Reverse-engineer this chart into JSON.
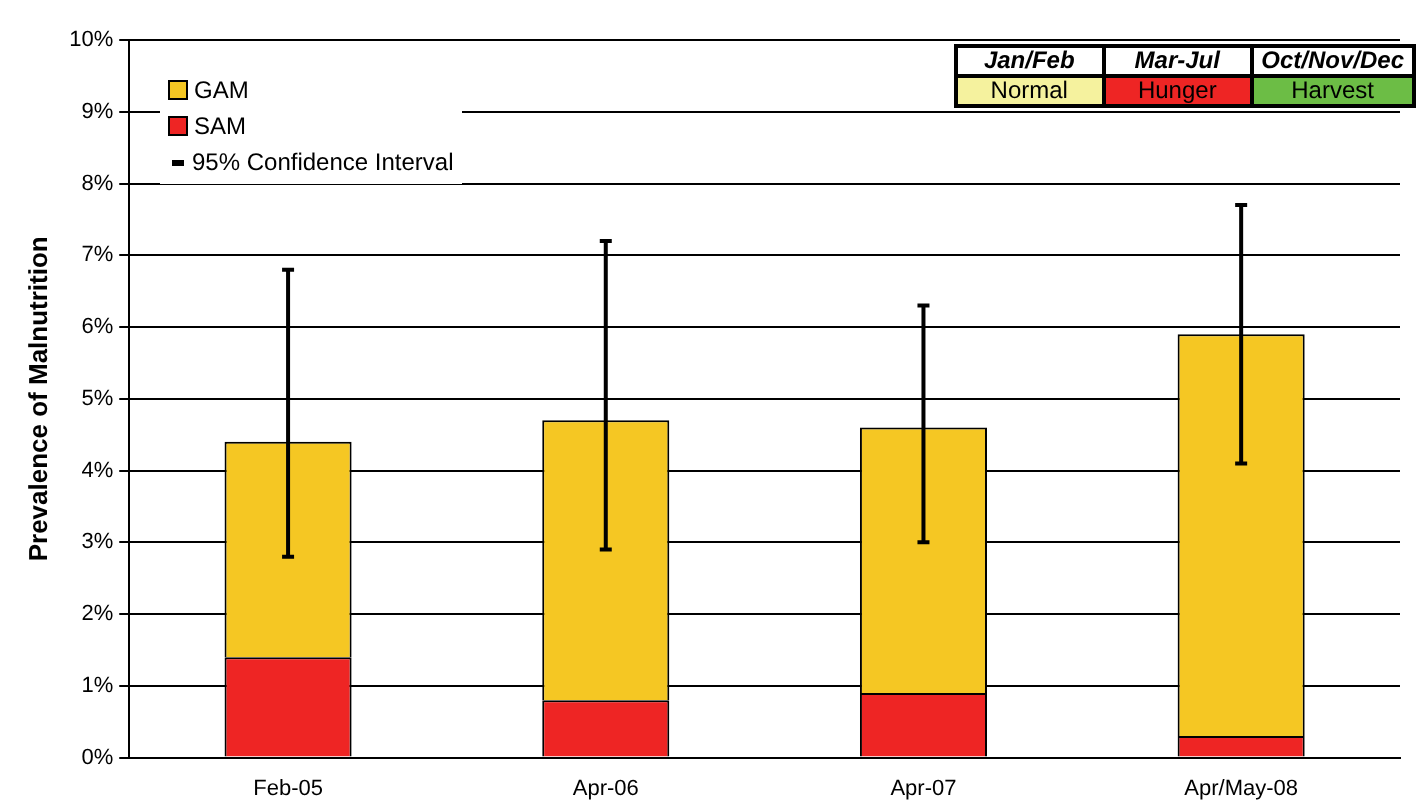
{
  "chart_data": {
    "type": "bar",
    "ylabel": "Prevalence of Malnutrition",
    "categories": [
      "Feb-05",
      "Apr-06",
      "Apr-07",
      "Apr/May-08"
    ],
    "stacked": true,
    "series": [
      {
        "name": "SAM",
        "color": "#ee2524",
        "values": [
          1.4,
          0.8,
          0.9,
          0.3
        ]
      },
      {
        "name": "GAM",
        "color": "#f5c723",
        "values": [
          3.0,
          3.9,
          3.7,
          5.6
        ],
        "errors": [
          [
            2.8,
            6.8
          ],
          [
            2.9,
            7.2
          ],
          [
            3.0,
            6.3
          ],
          [
            4.1,
            7.7
          ]
        ]
      }
    ],
    "ylim": [
      0,
      10
    ],
    "yticks": [
      {
        "value": 0,
        "label": "0%"
      },
      {
        "value": 1,
        "label": "1%"
      },
      {
        "value": 2,
        "label": "2%"
      },
      {
        "value": 3,
        "label": "3%"
      },
      {
        "value": 4,
        "label": "4%"
      },
      {
        "value": 5,
        "label": "5%"
      },
      {
        "value": 6,
        "label": "6%"
      },
      {
        "value": 7,
        "label": "7%"
      },
      {
        "value": 8,
        "label": "8%"
      },
      {
        "value": 9,
        "label": "9%"
      },
      {
        "value": 10,
        "label": "10%"
      }
    ],
    "grid": "y",
    "legend": "top left",
    "annotations": [
      "95% Confidence Interval",
      "Jan/Feb",
      "Normal",
      "Mar-Jul",
      "Hunger",
      "Oct/Nov/Dec",
      "Harvest"
    ]
  }
}
